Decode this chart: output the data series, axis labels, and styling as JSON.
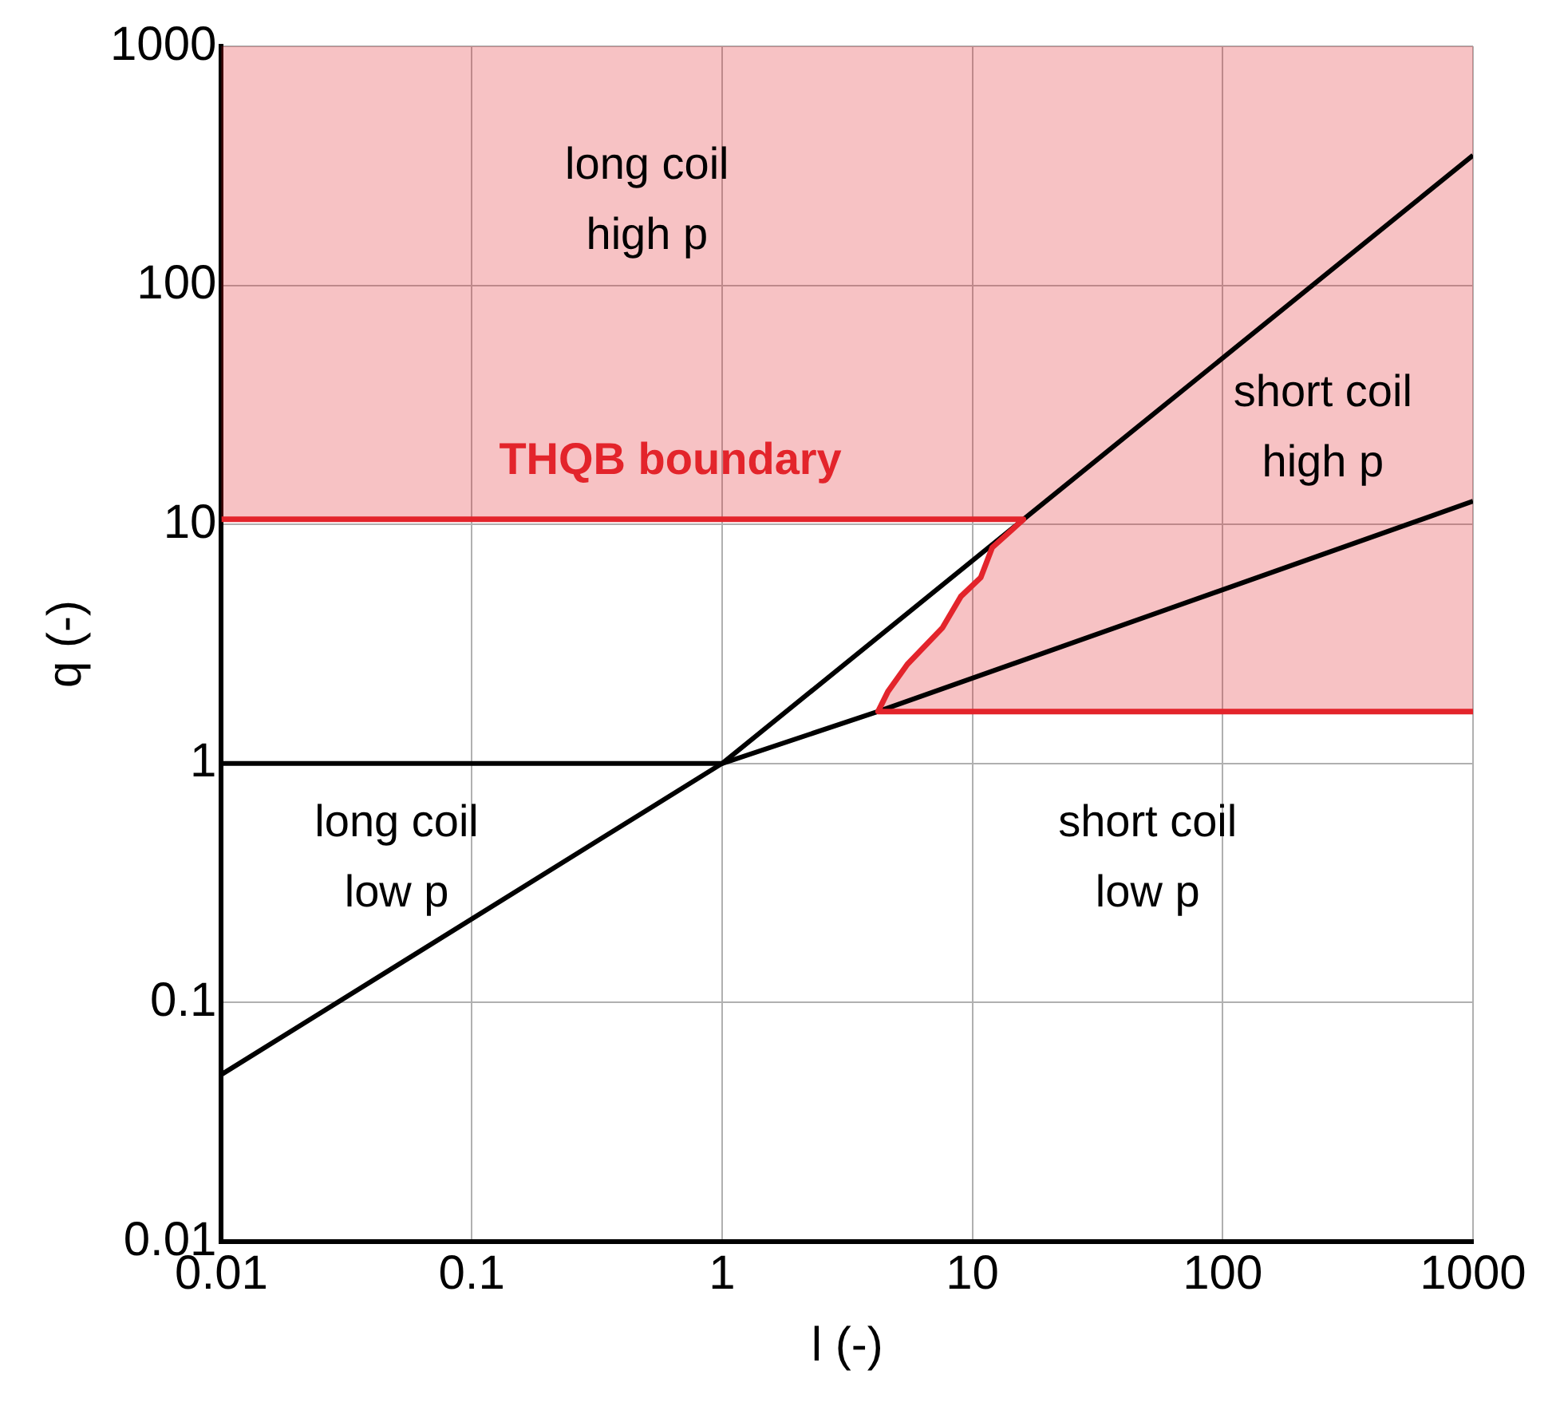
{
  "chart_data": {
    "type": "line",
    "xlabel": "l (-)",
    "ylabel": "q (-)",
    "log": "xy",
    "grid": true,
    "legend": false,
    "marker": "none",
    "line_style": "solid",
    "xlim": [
      0.01,
      1000
    ],
    "ylim": [
      0.01,
      1000
    ],
    "xticks": [
      0.01,
      0.1,
      1,
      10,
      100,
      1000
    ],
    "yticks": [
      0.01,
      0.1,
      1,
      10,
      100,
      1000
    ],
    "series": [
      {
        "name": "THQB boundary",
        "type": "area",
        "color": "#e3242b",
        "x": [
          0.01,
          16,
          12,
          10.8,
          9,
          7.6,
          5.5,
          4.6,
          4.2,
          1000,
          1000,
          0.01
        ],
        "values": [
          10.5,
          10.5,
          8,
          6,
          5,
          3.7,
          2.6,
          2,
          1.65,
          1.65,
          1000,
          1000
        ]
      },
      {
        "color": "#000000",
        "x": [
          0.01,
          1,
          4.2,
          1000
        ],
        "values": [
          1,
          1,
          1.65,
          12.5
        ]
      },
      {
        "color": "#000000",
        "x": [
          0.01,
          1,
          16,
          1000
        ],
        "values": [
          0.05,
          1,
          10.5,
          350
        ]
      }
    ],
    "annotations": [
      "long coil\nhigh p",
      "short coil\nhigh p",
      "long coil\nlow p",
      "short coil\nlow p"
    ]
  }
}
